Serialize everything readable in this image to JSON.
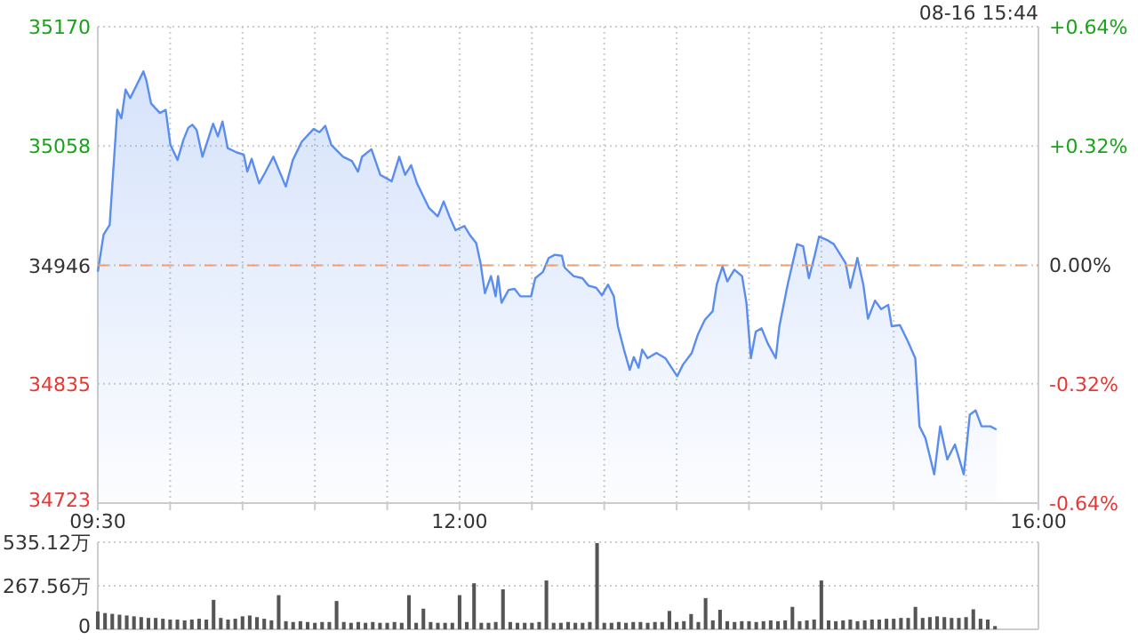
{
  "chart_data": [
    {
      "type": "area",
      "color": "#5b8def",
      "annotations": [
        "08-16 15:44"
      ],
      "grid": true,
      "x": [
        9.5,
        9.54,
        9.582,
        9.635,
        9.663,
        9.692,
        9.724,
        9.757,
        9.815,
        9.835,
        9.868,
        9.929,
        9.969,
        10.002,
        10.051,
        10.092,
        10.125,
        10.153,
        10.183,
        10.223,
        10.297,
        10.33,
        10.362,
        10.398,
        10.46,
        10.509,
        10.533,
        10.563,
        10.615,
        10.656,
        10.713,
        10.799,
        10.848,
        10.909,
        10.991,
        11.032,
        11.072,
        11.114,
        11.195,
        11.256,
        11.298,
        11.326,
        11.391,
        11.452,
        11.531,
        11.583,
        11.624,
        11.665,
        11.706,
        11.788,
        11.849,
        11.89,
        11.93,
        11.972,
        12.033,
        12.074,
        12.115,
        12.145,
        12.175,
        12.217,
        12.249,
        12.266,
        12.29,
        12.339,
        12.38,
        12.42,
        12.494,
        12.523,
        12.576,
        12.616,
        12.658,
        12.707,
        12.726,
        12.788,
        12.849,
        12.891,
        12.944,
        12.984,
        13.026,
        13.066,
        13.094,
        13.136,
        13.176,
        13.204,
        13.237,
        13.262,
        13.299,
        13.36,
        13.422,
        13.504,
        13.544,
        13.605,
        13.646,
        13.695,
        13.749,
        13.777,
        13.817,
        13.85,
        13.899,
        13.952,
        13.982,
        14.013,
        14.047,
        14.087,
        14.129,
        14.185,
        14.21,
        14.267,
        14.332,
        14.374,
        14.414,
        14.455,
        14.484,
        14.537,
        14.586,
        14.668,
        14.7,
        14.749,
        14.79,
        14.822,
        14.871,
        14.913,
        14.962,
        14.986,
        15.043,
        15.097,
        15.149,
        15.178,
        15.219,
        15.28,
        15.321,
        15.37,
        15.423,
        15.484,
        15.526,
        15.566,
        15.607,
        15.668,
        15.71
      ],
      "values": [
        34940,
        34975,
        34984,
        35092,
        35084,
        35111,
        35103,
        35112,
        35128,
        35120,
        35098,
        35089,
        35092,
        35059,
        35045,
        35064,
        35075,
        35078,
        35073,
        35048,
        35079,
        35067,
        35081,
        35056,
        35052,
        35050,
        35034,
        35046,
        35023,
        35033,
        35048,
        35020,
        35045,
        35062,
        35074,
        35071,
        35077,
        35059,
        35048,
        35044,
        35034,
        35048,
        35055,
        35031,
        35025,
        35048,
        35031,
        35040,
        35023,
        35000,
        34992,
        35006,
        34992,
        34979,
        34983,
        34974,
        34967,
        34948,
        34920,
        34936,
        34917,
        34936,
        34911,
        34923,
        34924,
        34917,
        34917,
        34934,
        34940,
        34953,
        34956,
        34955,
        34944,
        34936,
        34934,
        34927,
        34925,
        34918,
        34928,
        34917,
        34889,
        34867,
        34848,
        34860,
        34850,
        34867,
        34859,
        34864,
        34859,
        34842,
        34853,
        34864,
        34881,
        34895,
        34903,
        34928,
        34945,
        34931,
        34942,
        34936,
        34911,
        34859,
        34884,
        34887,
        34873,
        34859,
        34889,
        34928,
        34966,
        34964,
        34934,
        34956,
        34973,
        34970,
        34966,
        34948,
        34925,
        34953,
        34928,
        34896,
        34913,
        34905,
        34909,
        34889,
        34890,
        34875,
        34859,
        34795,
        34784,
        34750,
        34795,
        34764,
        34778,
        34750,
        34806,
        34810,
        34795,
        34795,
        34792
      ],
      "xlim": [
        9.5,
        16
      ],
      "xticks": [
        {
          "value": 9.5,
          "label": "09:30"
        },
        {
          "value": 10,
          "label": null
        },
        {
          "value": 10.5,
          "label": null
        },
        {
          "value": 11,
          "label": null
        },
        {
          "value": 11.5,
          "label": null
        },
        {
          "value": 12,
          "label": "12:00"
        },
        {
          "value": 12.5,
          "label": null
        },
        {
          "value": 13,
          "label": null
        },
        {
          "value": 13.5,
          "label": null
        },
        {
          "value": 14,
          "label": null
        },
        {
          "value": 14.5,
          "label": null
        },
        {
          "value": 15,
          "label": null
        },
        {
          "value": 15.5,
          "label": null
        },
        {
          "value": 16,
          "label": "16:00"
        }
      ],
      "ylim": [
        34723,
        35170
      ],
      "yticks": [
        34723,
        34835,
        34946,
        35058,
        35170
      ],
      "y2lim": [
        -0.64,
        0.64
      ],
      "y2ticks": [
        {
          "value": -0.64,
          "label": "-0.64%"
        },
        {
          "value": -0.32,
          "label": "-0.32%"
        },
        {
          "value": 0,
          "label": "0.00%"
        },
        {
          "value": 0.32,
          "label": "+0.32%"
        },
        {
          "value": 0.64,
          "label": "+0.64%"
        }
      ],
      "ref_lines": [
        {
          "axis": "y",
          "value": 34946,
          "color": "#f0a070",
          "line_style": "dashed"
        }
      ]
    },
    {
      "type": "bar",
      "color": "#555555",
      "grid": "y",
      "tick_labels": "y",
      "xlim": [
        9.5,
        16
      ],
      "x": [
        9.5,
        9.55,
        9.6,
        9.65,
        9.7,
        9.75,
        9.8,
        9.85,
        9.9,
        9.95,
        10,
        10.05,
        10.1,
        10.15,
        10.2,
        10.25,
        10.3,
        10.35,
        10.4,
        10.45,
        10.5,
        10.55,
        10.6,
        10.65,
        10.7,
        10.75,
        10.8,
        10.85,
        10.9,
        10.95,
        11,
        11.05,
        11.1,
        11.15,
        11.2,
        11.25,
        11.3,
        11.35,
        11.4,
        11.45,
        11.5,
        11.55,
        11.6,
        11.65,
        11.7,
        11.75,
        11.8,
        11.85,
        11.9,
        11.95,
        12,
        12.05,
        12.1,
        12.15,
        12.2,
        12.25,
        12.3,
        12.35,
        12.4,
        12.45,
        12.5,
        12.55,
        12.6,
        12.65,
        12.7,
        12.75,
        12.8,
        12.85,
        12.9,
        12.95,
        13,
        13.05,
        13.1,
        13.15,
        13.2,
        13.25,
        13.3,
        13.35,
        13.4,
        13.45,
        13.5,
        13.55,
        13.6,
        13.65,
        13.7,
        13.75,
        13.8,
        13.85,
        13.9,
        13.95,
        14,
        14.05,
        14.1,
        14.15,
        14.2,
        14.25,
        14.3,
        14.35,
        14.4,
        14.45,
        14.5,
        14.55,
        14.6,
        14.65,
        14.7,
        14.75,
        14.8,
        14.85,
        14.9,
        14.95,
        15,
        15.05,
        15.1,
        15.15,
        15.2,
        15.25,
        15.3,
        15.35,
        15.4,
        15.45,
        15.5,
        15.55,
        15.6,
        15.65,
        15.7
      ],
      "values": [
        110,
        100,
        95,
        90,
        85,
        80,
        75,
        70,
        70,
        65,
        60,
        60,
        55,
        60,
        65,
        60,
        181,
        70,
        60,
        65,
        80,
        85,
        75,
        65,
        55,
        210,
        50,
        45,
        50,
        45,
        40,
        45,
        45,
        174,
        45,
        40,
        45,
        40,
        45,
        40,
        40,
        45,
        40,
        210,
        40,
        127,
        45,
        40,
        40,
        40,
        210,
        45,
        283,
        40,
        40,
        45,
        246,
        45,
        40,
        40,
        40,
        45,
        300,
        40,
        40,
        45,
        40,
        40,
        45,
        530,
        40,
        40,
        45,
        40,
        45,
        45,
        40,
        45,
        45,
        113,
        45,
        50,
        94,
        45,
        192,
        55,
        120,
        50,
        45,
        50,
        50,
        45,
        50,
        55,
        50,
        55,
        138,
        50,
        55,
        60,
        300,
        55,
        50,
        55,
        60,
        50,
        55,
        60,
        60,
        65,
        65,
        70,
        70,
        138,
        70,
        75,
        80,
        75,
        70,
        70,
        75,
        123,
        65,
        60,
        20
      ],
      "ylim": [
        0,
        535.12
      ],
      "yticks": [
        0,
        {
          "value": 267.56,
          "label": "267.56万"
        },
        {
          "value": 535.12,
          "label": "535.12万"
        }
      ]
    }
  ]
}
